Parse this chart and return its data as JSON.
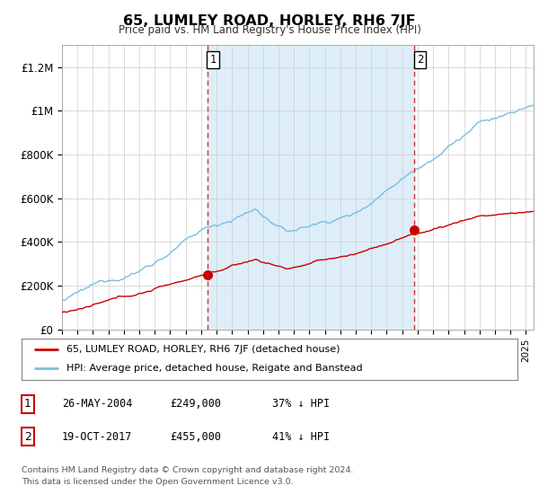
{
  "title": "65, LUMLEY ROAD, HORLEY, RH6 7JF",
  "subtitle": "Price paid vs. HM Land Registry's House Price Index (HPI)",
  "ylabel_ticks": [
    "£0",
    "£200K",
    "£400K",
    "£600K",
    "£800K",
    "£1M",
    "£1.2M"
  ],
  "ytick_values": [
    0,
    200000,
    400000,
    600000,
    800000,
    1000000,
    1200000
  ],
  "ylim": [
    0,
    1300000
  ],
  "xlim_start": 1995.0,
  "xlim_end": 2025.5,
  "hpi_color": "#7bbde0",
  "hpi_shade_color": "#ddeef8",
  "price_color": "#cc0000",
  "sale1_date": 2004.4,
  "sale1_price": 249000,
  "sale2_date": 2017.8,
  "sale2_price": 455000,
  "dashed_line_color": "#cc3333",
  "legend_entry1": "65, LUMLEY ROAD, HORLEY, RH6 7JF (detached house)",
  "legend_entry2": "HPI: Average price, detached house, Reigate and Banstead",
  "footer1": "Contains HM Land Registry data © Crown copyright and database right 2024.",
  "footer2": "This data is licensed under the Open Government Licence v3.0.",
  "bg_color": "#ffffff",
  "grid_color": "#cccccc"
}
